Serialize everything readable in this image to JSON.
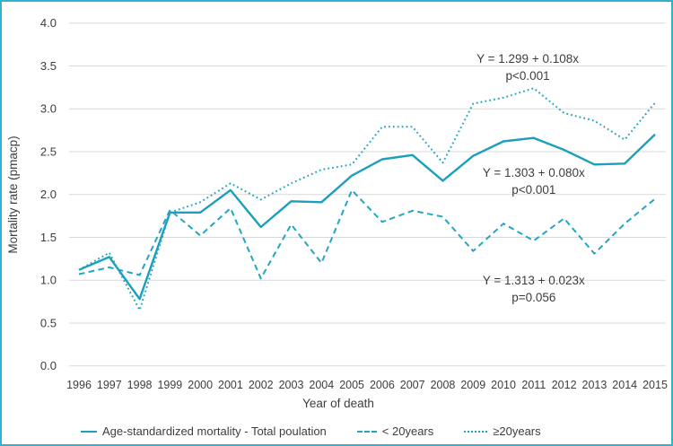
{
  "chart_data": {
    "type": "line",
    "title": "",
    "xlabel": "Year of death",
    "ylabel": "Mortality rate (pmacp)",
    "x": [
      1996,
      1997,
      1998,
      1999,
      2000,
      2001,
      2002,
      2003,
      2004,
      2005,
      2006,
      2007,
      2008,
      2009,
      2010,
      2011,
      2012,
      2013,
      2014,
      2015
    ],
    "ylim": [
      0.0,
      4.0
    ],
    "yticks": [
      "0.0",
      "0.5",
      "1.0",
      "1.5",
      "2.0",
      "2.5",
      "3.0",
      "3.5",
      "4.0"
    ],
    "grid": true,
    "legend_position": "bottom",
    "series": [
      {
        "name": "Age-standardized mortality - Total poulation",
        "style": "solid",
        "color": "#1b9fbd",
        "values": [
          1.12,
          1.27,
          0.78,
          1.79,
          1.79,
          2.05,
          1.62,
          1.92,
          1.91,
          2.22,
          2.41,
          2.46,
          2.16,
          2.45,
          2.62,
          2.66,
          2.52,
          2.35,
          2.36,
          2.7
        ]
      },
      {
        "name": "< 20years",
        "style": "dashed",
        "color": "#22a6c2",
        "values": [
          1.07,
          1.15,
          1.06,
          1.82,
          1.52,
          1.84,
          1.02,
          1.65,
          1.2,
          2.05,
          1.68,
          1.81,
          1.74,
          1.34,
          1.66,
          1.46,
          1.72,
          1.31,
          1.66,
          1.95
        ]
      },
      {
        "name": "≥20years",
        "style": "dotted",
        "color": "#22a6c2",
        "values": [
          1.12,
          1.32,
          0.65,
          1.79,
          1.91,
          2.13,
          1.94,
          2.13,
          2.29,
          2.35,
          2.79,
          2.79,
          2.37,
          3.06,
          3.13,
          3.24,
          2.95,
          2.86,
          2.64,
          3.07
        ]
      }
    ],
    "annotations": [
      {
        "lines": [
          "Y = 1.299 + 0.108x",
          "p<0.001"
        ],
        "x": 2010.8,
        "y": 3.58
      },
      {
        "lines": [
          "Y = 1.303 + 0.080x",
          "p<0.001"
        ],
        "x": 2011.0,
        "y": 2.25
      },
      {
        "lines": [
          "Y = 1.313 + 0.023x",
          "p=0.056"
        ],
        "x": 2011.0,
        "y": 0.99
      }
    ]
  },
  "colors": {
    "line": "#1b9fbd",
    "line_light": "#22a6c2",
    "border": "#33b0cd",
    "grid": "#d9d9d9",
    "text": "#3d3d3d"
  }
}
